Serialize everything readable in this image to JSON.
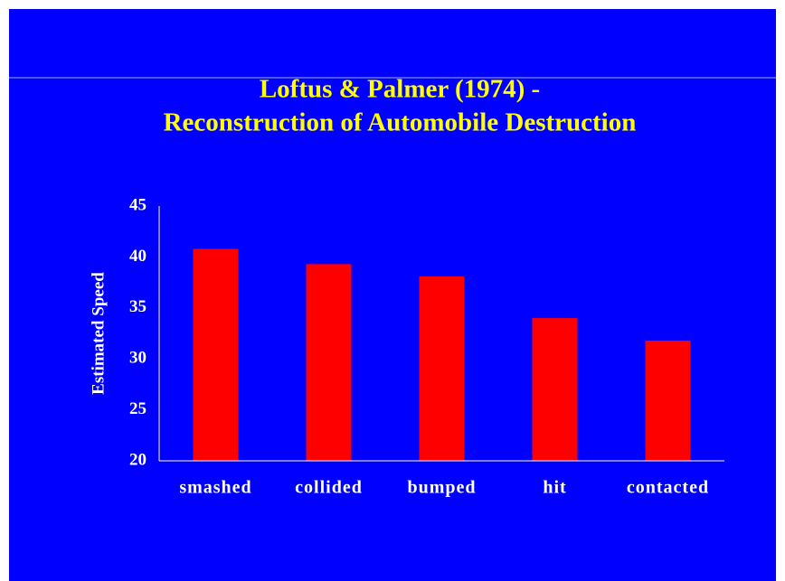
{
  "chart_data": {
    "type": "bar",
    "title": [
      "Loftus & Palmer (1974) -",
      "Reconstruction of Automobile Destruction"
    ],
    "y_label": "Estimated Speed",
    "categories": [
      "smashed",
      "collided",
      "bumped",
      "hit",
      "contacted"
    ],
    "values": [
      40.8,
      39.3,
      38.1,
      34.0,
      31.8
    ],
    "color": "#ff0000",
    "ylim": [
      20,
      45
    ],
    "yticks": [
      20,
      25,
      30,
      35,
      40,
      45
    ],
    "grid": false
  }
}
